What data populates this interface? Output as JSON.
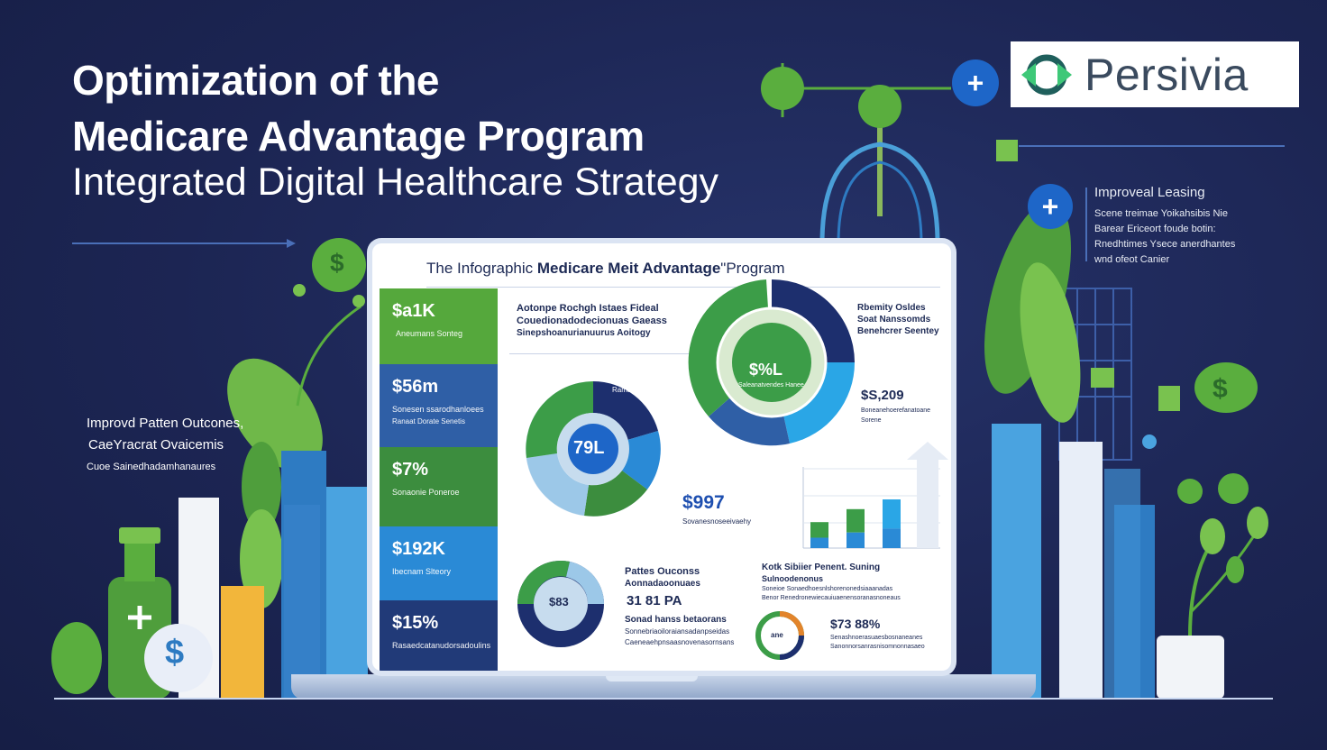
{
  "header": {
    "title_line1": "Optimization of the",
    "title_line2": "Medicare Advantage Program",
    "title_line3": "Integrated Digital Healthcare Strategy"
  },
  "logo": {
    "brand": "Persivia",
    "icon": "persivia-logo-icon"
  },
  "side_panel": {
    "heading": "Improveal Leasing",
    "lines": [
      "Scene treimae Yoikahsibis Nie",
      "Barear Ericeort foude botin:",
      "Rnedhtimes Ysece anerdhantes",
      "wnd ofeot Canier"
    ]
  },
  "left_note": {
    "line1": "Improvd Patten Outcones,",
    "line2": "CaeYracrat Ovaicemis",
    "line3": "Cuoe Sainedhadamhanaures"
  },
  "screen": {
    "title_prefix": "The Infographic ",
    "title_bold": "Medicare Meit Advantage",
    "title_suffix": "\"Program",
    "kpis": [
      {
        "value": "$a1K",
        "label": "Aneumans Sonteg",
        "color": "#55a83c"
      },
      {
        "value": "$56m",
        "label": "Sonesen ssarodhanloees",
        "sub": "Ranaat  Dorate  Senetis",
        "color": "#2f5fa6"
      },
      {
        "value": "$7%",
        "label": "Sonaonie Poneroe",
        "color": "#3c8d3e"
      },
      {
        "value": "$192K",
        "label": "Ibecnam Slteory",
        "color": "#2a8ad6"
      },
      {
        "value": "$15%",
        "label": "Rasaedcatanudorsadoulins",
        "color": "#213a78"
      }
    ],
    "block_top": {
      "line1": "Aotonpe Rochgh Istaes Fideal",
      "line2": "Couedionadodecionuas Gaeass",
      "line3": "Sinepshoanurianuurus Aoitogy"
    },
    "ring_center": "79L",
    "ring_label": "Ramaniy",
    "ring_value": "$997",
    "ring_value_sub": "Sovanesnoseeivaehy",
    "donut_value": "$%L",
    "donut_sub": "Saleanatvendes Hanee",
    "right_block": {
      "line1": "Rbemity Osldes",
      "line2": "Soat Nanssomds",
      "line3": "Benehcrer Seentey"
    },
    "right_value": "$S,209",
    "right_value_sub": "Boneanehoerefanatoane Sorene",
    "bottom_left": {
      "title1": "Pattes Ouconss",
      "title2": "Aonnadaoonuaes",
      "value": "31 81 PA",
      "line1": "Sonad hanss betaorans",
      "line2": "Sonnebriaoiloraiansadanpseidas",
      "line3": "Caeneaehpnsaasnovenasornsans",
      "ring": "$83"
    },
    "bottom_right": {
      "title": "Kotk Sibiier Penent. Suning",
      "sub": "Sulnoodenonus",
      "line1": "Soneioe Sonaedhoesnlshorenonedsiaaanadas",
      "line2": "Benor Renedronewiecauiuaenensoranasnoneaus",
      "value": "$73 88%",
      "line3": "Senashnoerasuaesbosnaneanes",
      "line4": "Sanonnorsanrasnisomnonnasaeo",
      "ring": "ane"
    },
    "bars": [
      32,
      48,
      60,
      72
    ]
  },
  "colors": {
    "green": "#5aae3e",
    "blue": "#1e66c8",
    "navy": "#1d2a55",
    "bg": "#1b2450"
  }
}
